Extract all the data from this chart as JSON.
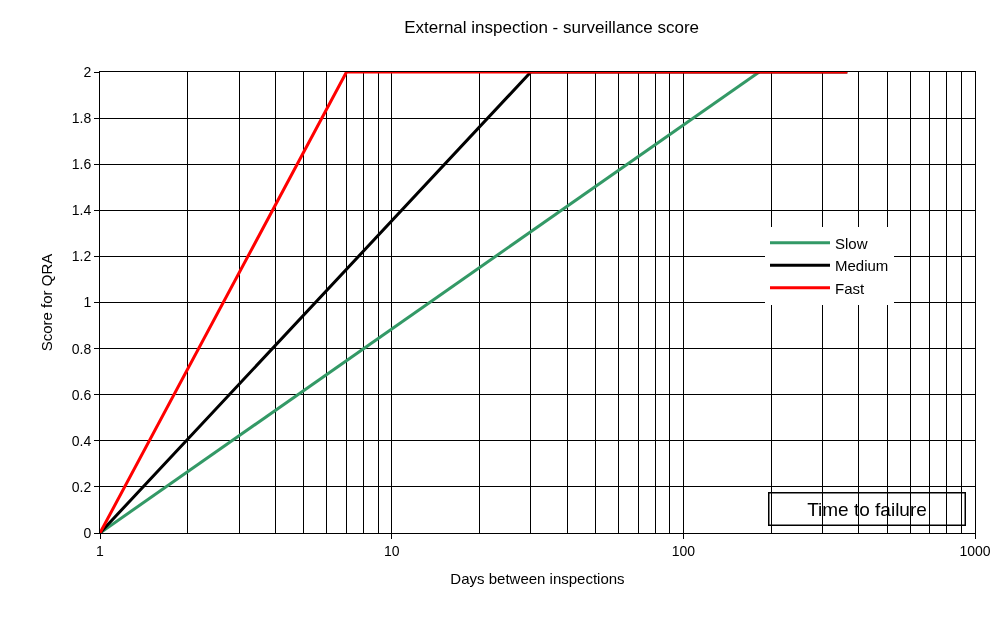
{
  "chart_data": {
    "type": "line",
    "title": "External inspection - surveillance score",
    "xlabel": "Days between inspections",
    "ylabel": "Score for QRA",
    "log": "x",
    "xlim": [
      1,
      1000
    ],
    "xticks": [
      1,
      10,
      100,
      1000
    ],
    "ylim": [
      0,
      2
    ],
    "yticks": [
      0,
      0.2,
      0.4,
      0.6,
      0.8,
      1,
      1.2,
      1.4,
      1.6,
      1.8,
      2
    ],
    "grid": true,
    "legend": "right",
    "line_style": "solid",
    "series": [
      {
        "name": "Slow",
        "color": "#339966",
        "x": [
          1,
          182
        ],
        "values": [
          0,
          2
        ]
      },
      {
        "name": "Medium",
        "color": "#000000",
        "x": [
          1,
          30,
          365
        ],
        "values": [
          0,
          2,
          2
        ]
      },
      {
        "name": "Fast",
        "color": "#ff0000",
        "x": [
          1,
          7,
          365
        ],
        "values": [
          0,
          2,
          2
        ]
      }
    ],
    "annotations": [
      "Time to failure"
    ]
  }
}
